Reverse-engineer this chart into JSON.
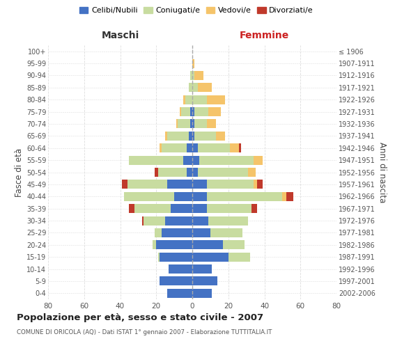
{
  "age_groups": [
    "0-4",
    "5-9",
    "10-14",
    "15-19",
    "20-24",
    "25-29",
    "30-34",
    "35-39",
    "40-44",
    "45-49",
    "50-54",
    "55-59",
    "60-64",
    "65-69",
    "70-74",
    "75-79",
    "80-84",
    "85-89",
    "90-94",
    "95-99",
    "100+"
  ],
  "birth_years": [
    "2002-2006",
    "1997-2001",
    "1992-1996",
    "1987-1991",
    "1982-1986",
    "1977-1981",
    "1972-1976",
    "1967-1971",
    "1962-1966",
    "1957-1961",
    "1952-1956",
    "1947-1951",
    "1942-1946",
    "1937-1941",
    "1932-1936",
    "1927-1931",
    "1922-1926",
    "1917-1921",
    "1912-1916",
    "1907-1911",
    "≤ 1906"
  ],
  "male": {
    "celibi": [
      14,
      18,
      13,
      18,
      20,
      17,
      15,
      12,
      10,
      14,
      3,
      5,
      3,
      2,
      1,
      1,
      0,
      0,
      0,
      0,
      0
    ],
    "coniugati": [
      0,
      0,
      0,
      1,
      2,
      4,
      12,
      20,
      28,
      22,
      16,
      30,
      14,
      12,
      7,
      5,
      4,
      2,
      1,
      0,
      0
    ],
    "vedovi": [
      0,
      0,
      0,
      0,
      0,
      0,
      0,
      0,
      0,
      0,
      0,
      0,
      1,
      1,
      1,
      1,
      1,
      0,
      0,
      0,
      0
    ],
    "divorziati": [
      0,
      0,
      0,
      0,
      0,
      0,
      1,
      3,
      0,
      3,
      2,
      0,
      0,
      0,
      0,
      0,
      0,
      0,
      0,
      0,
      0
    ]
  },
  "female": {
    "nubili": [
      11,
      14,
      11,
      20,
      17,
      10,
      9,
      8,
      8,
      8,
      3,
      4,
      3,
      1,
      1,
      1,
      0,
      0,
      0,
      0,
      0
    ],
    "coniugate": [
      0,
      0,
      0,
      12,
      12,
      18,
      22,
      25,
      42,
      26,
      28,
      30,
      18,
      12,
      7,
      8,
      8,
      3,
      1,
      0,
      0
    ],
    "vedove": [
      0,
      0,
      0,
      0,
      0,
      0,
      0,
      0,
      2,
      2,
      4,
      5,
      5,
      5,
      5,
      7,
      10,
      8,
      5,
      1,
      0
    ],
    "divorziate": [
      0,
      0,
      0,
      0,
      0,
      0,
      0,
      3,
      4,
      3,
      0,
      0,
      1,
      0,
      0,
      0,
      0,
      0,
      0,
      0,
      0
    ]
  },
  "colors": {
    "celibi_nubili": "#4472C4",
    "coniugati": "#C8DCA0",
    "vedovi": "#F5C46A",
    "divorziati": "#C0392B"
  },
  "xlim": 80,
  "title": "Popolazione per età, sesso e stato civile - 2007",
  "subtitle": "COMUNE DI ORICOLA (AQ) - Dati ISTAT 1° gennaio 2007 - Elaborazione TUTTITALIA.IT",
  "ylabel_left": "Fasce di età",
  "ylabel_right": "Anni di nascita",
  "xlabel_left": "Maschi",
  "xlabel_right": "Femmine",
  "bg_color": "#FFFFFF",
  "grid_color": "#CCCCCC"
}
